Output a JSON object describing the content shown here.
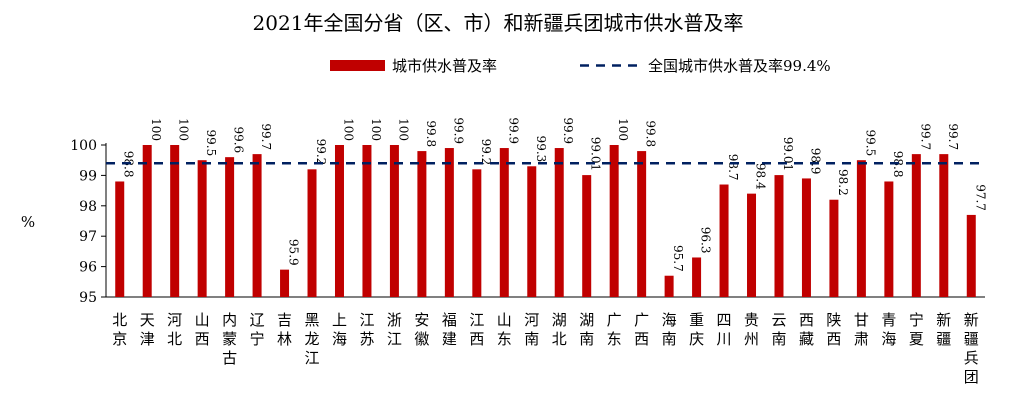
{
  "chart_data": {
    "type": "bar",
    "title": "2021年全国分省（区、市）和新疆兵团城市供水普及率",
    "ylabel": "%",
    "ylim": [
      95,
      100
    ],
    "yticks": [
      95,
      96,
      97,
      98,
      99,
      100
    ],
    "grid": false,
    "legend_position": "top",
    "categories": [
      "北京",
      "天津",
      "河北",
      "山西",
      "内蒙古",
      "辽宁",
      "吉林",
      "黑龙江",
      "上海",
      "江苏",
      "浙江",
      "安徽",
      "福建",
      "江西",
      "山东",
      "河南",
      "湖北",
      "湖南",
      "广东",
      "广西",
      "海南",
      "重庆",
      "四川",
      "贵州",
      "云南",
      "西藏",
      "陕西",
      "甘肃",
      "青海",
      "宁夏",
      "新疆",
      "新疆兵团"
    ],
    "series": [
      {
        "name": "城市供水普及率",
        "color": "#C00000",
        "values": [
          98.8,
          100,
          100,
          99.5,
          99.6,
          99.7,
          95.9,
          99.2,
          100,
          100,
          100,
          99.8,
          99.9,
          99.2,
          99.9,
          99.3,
          99.9,
          99.01,
          100,
          99.8,
          95.7,
          96.3,
          98.7,
          98.4,
          99.01,
          98.9,
          98.2,
          99.5,
          98.8,
          99.7,
          99.7,
          97.7
        ],
        "labels": [
          "98.8",
          "100",
          "100",
          "99.5",
          "99.6",
          "99.7",
          "95.9",
          "99.2",
          "100",
          "100",
          "100",
          "99.8",
          "99.9",
          "99.2",
          "99.9",
          "99.3",
          "99.9",
          "99.01",
          "100",
          "99.8",
          "95.7",
          "96.3",
          "98.7",
          "98.4",
          "99.01",
          "98.9",
          "98.2",
          "99.5",
          "98.8",
          "99.7",
          "99.7",
          "97.7"
        ]
      }
    ],
    "reference_line": {
      "name": "全国城市供水普及率99.4%",
      "value": 99.4,
      "color": "#002060",
      "style": "dashed"
    }
  }
}
